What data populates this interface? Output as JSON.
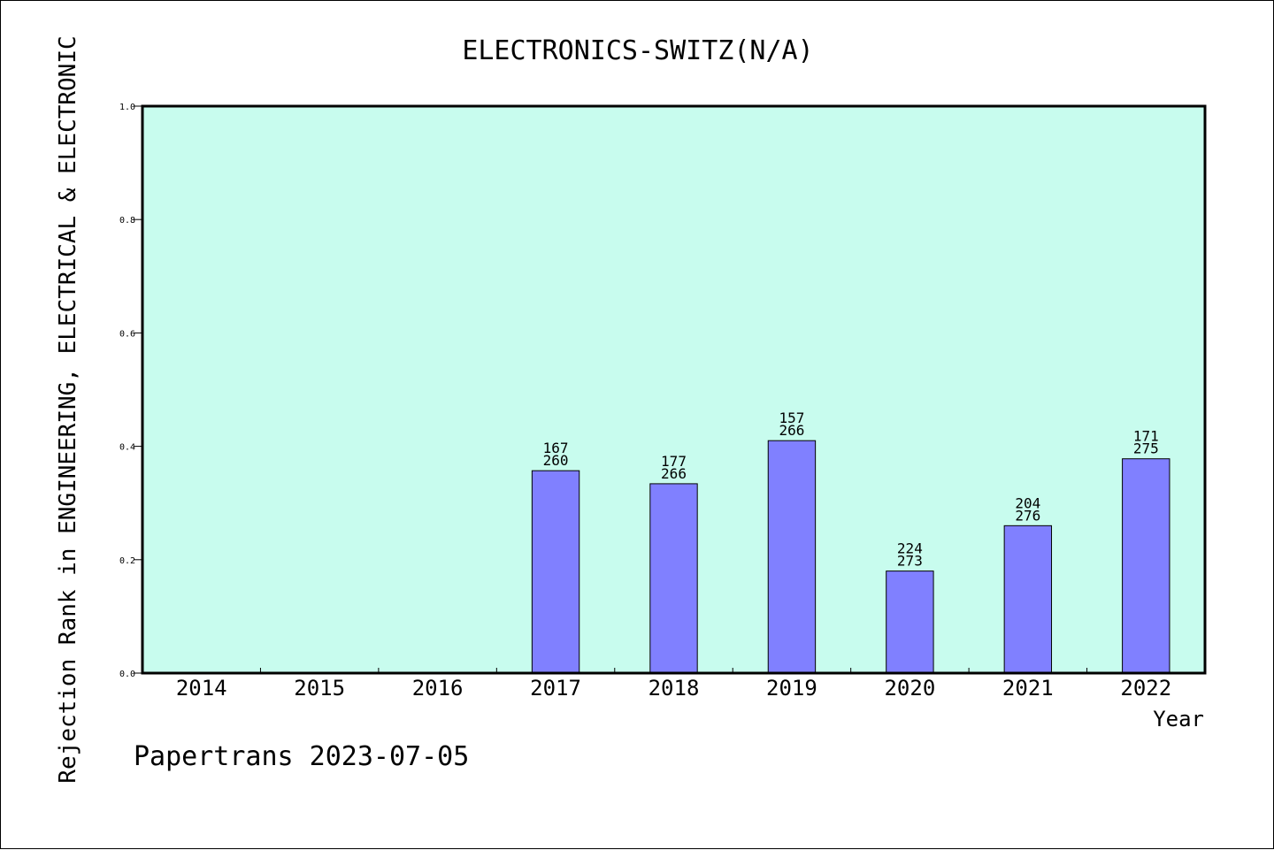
{
  "chart_data": {
    "type": "bar",
    "title": "ELECTRONICS-SWITZ(N/A)",
    "xlabel": "Year",
    "ylabel": "Rejection Rank in ENGINEERING, ELECTRICAL & ELECTRONIC",
    "categories": [
      "2014",
      "2015",
      "2016",
      "2017",
      "2018",
      "2019",
      "2020",
      "2021",
      "2022"
    ],
    "values": [
      null,
      null,
      null,
      0.357,
      0.334,
      0.41,
      0.18,
      0.26,
      0.378
    ],
    "annotations": [
      null,
      null,
      null,
      {
        "top": "167",
        "bottom": "260"
      },
      {
        "top": "177",
        "bottom": "266"
      },
      {
        "top": "157",
        "bottom": "266"
      },
      {
        "top": "224",
        "bottom": "273"
      },
      {
        "top": "204",
        "bottom": "276"
      },
      {
        "top": "171",
        "bottom": "275"
      }
    ],
    "ylim": [
      0,
      1.0
    ],
    "yticks": [
      "0.0",
      "0.2",
      "0.4",
      "0.6",
      "0.8",
      "1.0"
    ],
    "grid": false,
    "colors": {
      "plot_background": "#c8fcee",
      "bar_fill": "#8080ff",
      "bar_edge": "#000000",
      "axis": "#000000"
    }
  },
  "footer": "Papertrans 2023-07-05"
}
